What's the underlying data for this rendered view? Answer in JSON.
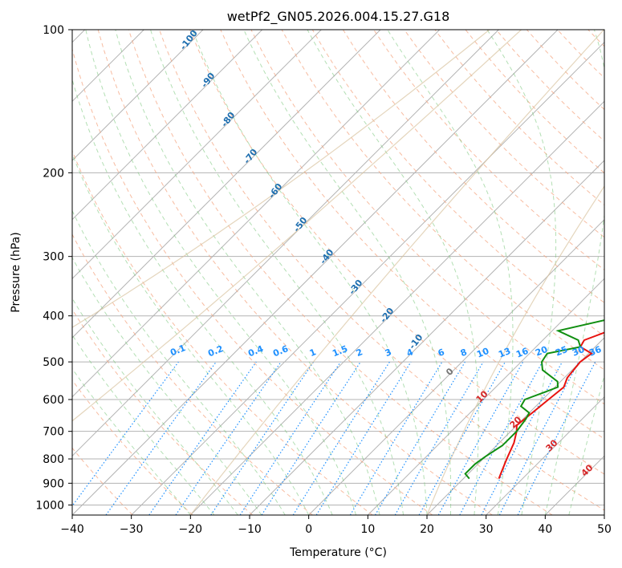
{
  "chart_data": {
    "type": "line",
    "title": "wetPf2_GN05.2026.004.15.27.G18",
    "xlabel": "Temperature (°C)",
    "ylabel": "Pressure (hPa)",
    "xlim": [
      -40,
      50
    ],
    "ylim": [
      1050,
      100
    ],
    "x_ticks": [
      -40,
      -30,
      -20,
      -10,
      0,
      10,
      20,
      30,
      40,
      50
    ],
    "y_ticks": [
      100,
      200,
      300,
      400,
      500,
      600,
      700,
      800,
      900,
      1000
    ],
    "grid": true,
    "series": [
      {
        "name": "Temperature",
        "color": "#e8130f",
        "points": [
          [
            26,
            880
          ],
          [
            25.5,
            860
          ],
          [
            24,
            800
          ],
          [
            22.5,
            740
          ],
          [
            21,
            700
          ],
          [
            20,
            680
          ],
          [
            20.5,
            640
          ],
          [
            21,
            600
          ],
          [
            21.5,
            565
          ],
          [
            20.5,
            540
          ],
          [
            20,
            500
          ],
          [
            20.5,
            480
          ],
          [
            17.5,
            465
          ],
          [
            17,
            450
          ],
          [
            21,
            420
          ],
          [
            19.5,
            395
          ],
          [
            16,
            355
          ],
          [
            14.5,
            345
          ],
          [
            13,
            320
          ],
          [
            10,
            300
          ],
          [
            6,
            280
          ],
          [
            4.5,
            260
          ],
          [
            4.5,
            245
          ],
          [
            3,
            230
          ],
          [
            1,
            210
          ],
          [
            -2,
            180
          ],
          [
            -5,
            155
          ],
          [
            -8,
            135
          ],
          [
            -11,
            120
          ],
          [
            -12.5,
            113
          ],
          [
            -13,
            110
          ],
          [
            -11,
            106
          ],
          [
            -7,
            101
          ],
          [
            -6,
            100
          ]
        ]
      },
      {
        "name": "Dewpoint",
        "color": "#118f11",
        "points": [
          [
            21,
            880
          ],
          [
            19.5,
            860
          ],
          [
            19.5,
            820
          ],
          [
            20,
            790
          ],
          [
            21,
            750
          ],
          [
            21,
            700
          ],
          [
            20.5,
            660
          ],
          [
            20,
            640
          ],
          [
            17.5,
            620
          ],
          [
            17,
            600
          ],
          [
            19,
            580
          ],
          [
            20.5,
            565
          ],
          [
            19.5,
            550
          ],
          [
            15,
            520
          ],
          [
            13.5,
            500
          ],
          [
            13,
            480
          ],
          [
            17.5,
            465
          ],
          [
            16,
            450
          ],
          [
            11,
            430
          ],
          [
            19.5,
            400
          ],
          [
            15.5,
            380
          ],
          [
            14,
            355
          ],
          [
            13,
            320
          ],
          [
            10,
            300
          ],
          [
            6,
            280
          ],
          [
            4.5,
            260
          ],
          [
            4.5,
            245
          ],
          [
            3,
            230
          ],
          [
            1,
            210
          ],
          [
            -2,
            180
          ],
          [
            -5,
            155
          ],
          [
            -8,
            135
          ],
          [
            -11,
            120
          ],
          [
            -12,
            110
          ],
          [
            -12.5,
            105
          ],
          [
            -8,
            100
          ]
        ]
      }
    ],
    "dry_adiabat_labels": [
      "-100",
      "-90",
      "-80",
      "-70",
      "-60",
      "-50",
      "-40",
      "-30",
      "-20",
      "-10"
    ],
    "moist_adiabat_labels": [
      "0",
      "10",
      "20",
      "30",
      "40"
    ],
    "mixing_ratio_labels": [
      "0.1",
      "0.2",
      "0.4",
      "0.6",
      "1",
      "1.5",
      "2",
      "3",
      "4",
      "6",
      "8",
      "10",
      "13",
      "16",
      "20",
      "25",
      "30",
      "36"
    ]
  }
}
